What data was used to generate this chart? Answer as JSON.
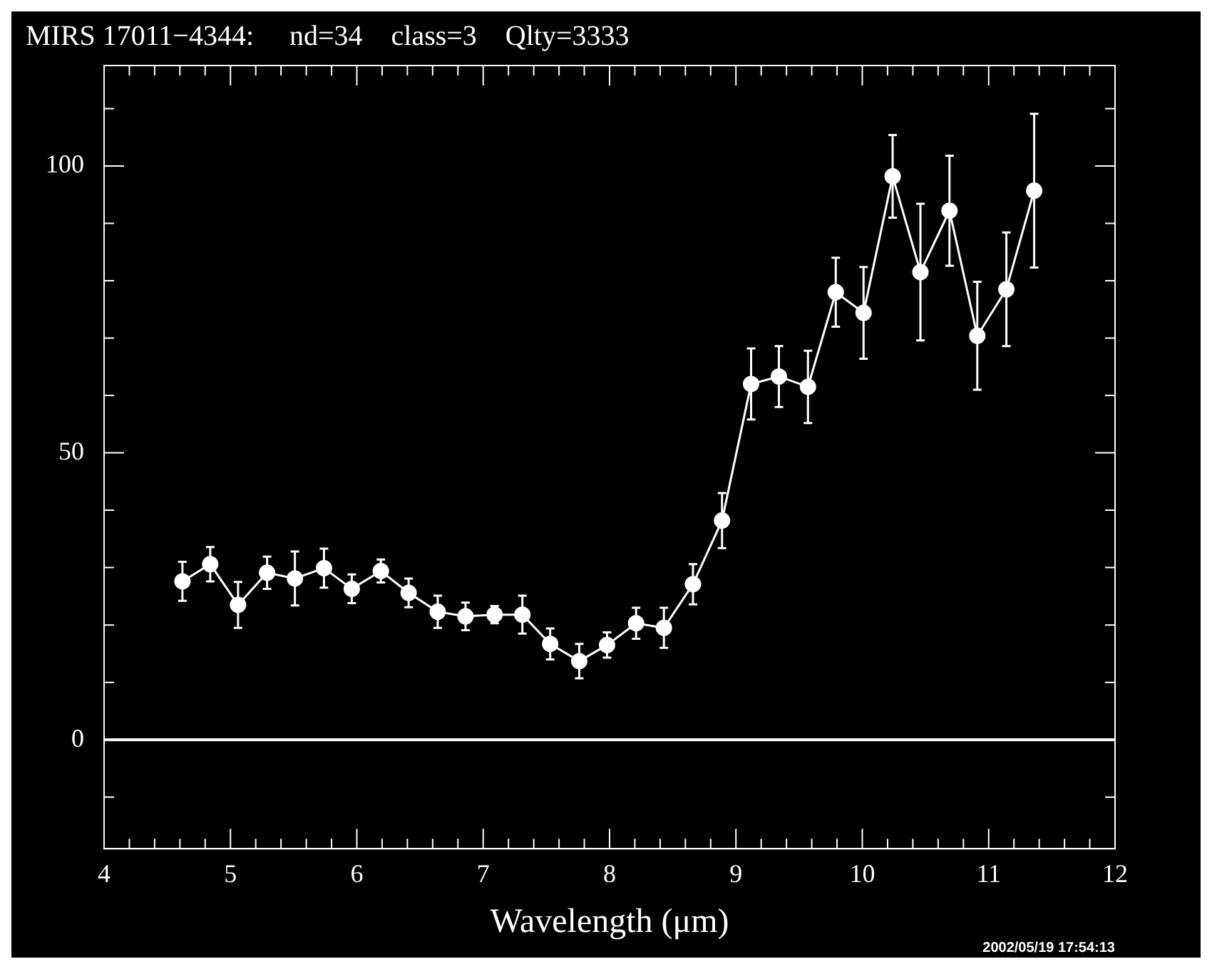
{
  "chart_data": {
    "type": "line",
    "title": "MIRS 17011−4344:     nd=34    class=3    Qlty=3333",
    "xlabel": "Wavelength (μm)",
    "annotations": [
      "2002/05/19 17:54:13"
    ],
    "x": [
      4.62,
      4.84,
      5.06,
      5.29,
      5.51,
      5.74,
      5.96,
      6.19,
      6.41,
      6.64,
      6.86,
      7.09,
      7.31,
      7.53,
      7.76,
      7.98,
      8.21,
      8.43,
      8.66,
      8.89,
      9.12,
      9.34,
      9.57,
      9.79,
      10.01,
      10.24,
      10.46,
      10.69,
      10.91,
      11.14,
      11.36
    ],
    "series": [
      {
        "color": "#ffffff",
        "values": [
          27.6,
          30.6,
          23.5,
          29.1,
          28.1,
          29.9,
          26.3,
          29.4,
          25.6,
          22.3,
          21.5,
          21.8,
          21.8,
          16.7,
          13.7,
          16.5,
          20.3,
          19.5,
          27.1,
          38.2,
          62.0,
          63.3,
          61.5,
          78.0,
          74.4,
          98.2,
          81.5,
          92.2,
          70.4,
          78.5,
          95.7
        ],
        "errors": [
          3.4,
          3,
          4,
          2.8,
          4.7,
          3.4,
          2.5,
          2,
          2.5,
          2.8,
          2.4,
          1.5,
          3.3,
          2.7,
          3,
          2.2,
          2.7,
          3.5,
          3.5,
          4.8,
          6.2,
          5.3,
          6.3,
          6,
          8,
          7.2,
          11.9,
          9.6,
          9.4,
          9.9,
          13.4
        ]
      }
    ],
    "marker": "circle",
    "line_style": "solid",
    "grid": false,
    "legend": false,
    "xlim": [
      4,
      12
    ],
    "xticks": [
      4,
      {
        "value": 4.2,
        "label": null
      },
      {
        "value": 4.4,
        "label": null
      },
      {
        "value": 4.6,
        "label": null
      },
      {
        "value": 4.8,
        "label": null
      },
      5,
      {
        "value": 5.2,
        "label": null
      },
      {
        "value": 5.4,
        "label": null
      },
      {
        "value": 5.6,
        "label": null
      },
      {
        "value": 5.8,
        "label": null
      },
      6,
      {
        "value": 6.2,
        "label": null
      },
      {
        "value": 6.4,
        "label": null
      },
      {
        "value": 6.6,
        "label": null
      },
      {
        "value": 6.8,
        "label": null
      },
      7,
      {
        "value": 7.2,
        "label": null
      },
      {
        "value": 7.4,
        "label": null
      },
      {
        "value": 7.6,
        "label": null
      },
      {
        "value": 7.8,
        "label": null
      },
      8,
      {
        "value": 8.2,
        "label": null
      },
      {
        "value": 8.4,
        "label": null
      },
      {
        "value": 8.6,
        "label": null
      },
      {
        "value": 8.8,
        "label": null
      },
      9,
      {
        "value": 9.2,
        "label": null
      },
      {
        "value": 9.4,
        "label": null
      },
      {
        "value": 9.6,
        "label": null
      },
      {
        "value": 9.8,
        "label": null
      },
      10,
      {
        "value": 10.2,
        "label": null
      },
      {
        "value": 10.4,
        "label": null
      },
      {
        "value": 10.6,
        "label": null
      },
      {
        "value": 10.8,
        "label": null
      },
      11,
      {
        "value": 11.2,
        "label": null
      },
      {
        "value": 11.4,
        "label": null
      },
      {
        "value": 11.6,
        "label": null
      },
      {
        "value": 11.8,
        "label": null
      },
      12
    ],
    "ylim": [
      -19,
      117.5
    ],
    "yticks": [
      {
        "value": -10,
        "label": null
      },
      0,
      {
        "value": 10,
        "label": null
      },
      {
        "value": 20,
        "label": null
      },
      {
        "value": 30,
        "label": null
      },
      {
        "value": 40,
        "label": null
      },
      50,
      {
        "value": 60,
        "label": null
      },
      {
        "value": 70,
        "label": null
      },
      {
        "value": 80,
        "label": null
      },
      {
        "value": 90,
        "label": null
      },
      100,
      {
        "value": 110,
        "label": null
      }
    ],
    "ref_lines": [
      {
        "axis": "y",
        "value": 0,
        "color": "#ffffff"
      }
    ]
  }
}
